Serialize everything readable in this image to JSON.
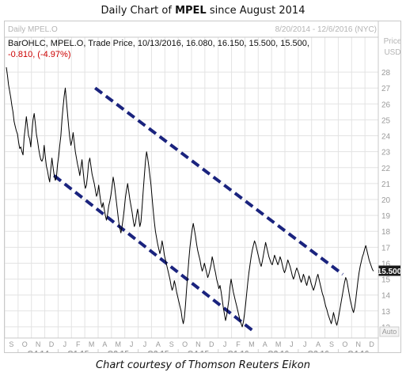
{
  "title": {
    "prefix": "Daily Chart of ",
    "ticker": "MPEL",
    "suffix": " since August 2014"
  },
  "header": {
    "instrument": "Daily MPEL.O",
    "date_range": "8/20/2014 - 12/6/2016 (NYC)",
    "info_line": "BarOHLC, MPEL.O, Trade Price, 10/13/2016, 16.080, 16.150, 15.500, 15.500,",
    "change_line": "-0.810, (-4.97%)",
    "axis_title_1": "Price",
    "axis_title_2": "USD",
    "last_price": "15.500",
    "auto_button": "Auto"
  },
  "caption": "Chart courtesy of Thomson Reuters Eikon",
  "colors": {
    "price": "#000000",
    "channel": "#1a237e",
    "grid": "#e3e3e3",
    "change": "#cc0000",
    "last_badge": "#1a1a1a"
  },
  "chart_data": {
    "type": "line",
    "series": [
      {
        "values": [
          28.3,
          27.8,
          27.2,
          26.8,
          26.4,
          25.9,
          25.5,
          24.9,
          24.6,
          24.3,
          24.1,
          23.6,
          23.2,
          23.3,
          23.0,
          22.8,
          23.9,
          24.5,
          25.2,
          24.6,
          24.0,
          23.8,
          23.3,
          24.2,
          25.0,
          25.4,
          24.8,
          24.1,
          23.7,
          23.2,
          22.8,
          22.5,
          22.4,
          22.6,
          23.4,
          22.7,
          22.1,
          21.8,
          21.4,
          21.1,
          21.9,
          22.6,
          22.0,
          21.5,
          21.2,
          21.4,
          22.2,
          22.7,
          23.4,
          24.0,
          25.0,
          25.8,
          26.5,
          27.0,
          26.2,
          25.4,
          24.6,
          23.9,
          23.4,
          23.7,
          24.2,
          23.6,
          23.0,
          22.6,
          22.2,
          21.9,
          21.5,
          22.0,
          22.5,
          21.8,
          21.1,
          20.7,
          20.9,
          21.5,
          22.3,
          22.6,
          22.1,
          21.6,
          21.3,
          21.0,
          20.6,
          20.2,
          20.4,
          20.9,
          20.3,
          19.8,
          19.5,
          19.8,
          19.4,
          19.0,
          18.7,
          19.1,
          19.6,
          19.9,
          20.3,
          20.8,
          21.4,
          21.0,
          20.4,
          19.8,
          19.2,
          18.6,
          18.2,
          17.9,
          18.3,
          18.8,
          19.4,
          20.1,
          20.6,
          21.0,
          20.5,
          20.0,
          19.6,
          19.2,
          18.7,
          18.3,
          18.5,
          19.0,
          19.4,
          18.9,
          18.3,
          18.6,
          19.5,
          20.5,
          21.5,
          22.4,
          23.0,
          22.6,
          22.1,
          21.5,
          20.9,
          20.1,
          19.3,
          18.6,
          18.0,
          17.6,
          17.2,
          16.9,
          16.6,
          16.9,
          17.4,
          17.0,
          16.5,
          16.2,
          15.9,
          15.6,
          15.3,
          15.0,
          14.6,
          14.3,
          14.5,
          14.9,
          14.6,
          14.2,
          13.9,
          13.6,
          13.3,
          13.0,
          12.5,
          12.2,
          12.6,
          13.4,
          14.4,
          15.3,
          16.2,
          17.0,
          17.6,
          18.1,
          18.5,
          18.1,
          17.7,
          17.2,
          16.8,
          16.5,
          16.2,
          15.8,
          15.5,
          15.7,
          16.0,
          15.7,
          15.4,
          15.1,
          15.3,
          15.6,
          15.9,
          16.4,
          16.1,
          15.7,
          15.4,
          15.0,
          14.7,
          14.4,
          14.6,
          14.2,
          13.7,
          13.2,
          12.8,
          12.4,
          12.7,
          13.2,
          13.7,
          14.5,
          15.0,
          14.6,
          14.2,
          13.9,
          13.6,
          13.3,
          13.0,
          12.7,
          12.4,
          12.2,
          12.0,
          12.3,
          12.8,
          13.4,
          14.1,
          14.8,
          15.4,
          15.9,
          16.4,
          16.8,
          17.1,
          17.4,
          17.2,
          16.9,
          16.6,
          16.3,
          16.0,
          15.8,
          16.1,
          16.5,
          16.9,
          17.3,
          17.0,
          16.7,
          16.4,
          16.2,
          16.0,
          15.9,
          16.2,
          16.5,
          16.3,
          16.1,
          15.9,
          16.1,
          16.4,
          16.2,
          15.9,
          15.6,
          15.4,
          15.6,
          15.9,
          16.2,
          16.0,
          15.8,
          15.5,
          15.2,
          15.0,
          15.2,
          15.5,
          15.7,
          15.5,
          15.3,
          15.0,
          14.8,
          15.0,
          15.3,
          15.1,
          14.8,
          14.6,
          14.9,
          15.2,
          15.0,
          14.7,
          14.5,
          14.3,
          14.5,
          14.8,
          15.1,
          15.3,
          15.0,
          14.7,
          14.4,
          14.1,
          13.9,
          13.6,
          13.3,
          13.1,
          12.8,
          12.6,
          12.4,
          12.2,
          12.5,
          12.9,
          12.6,
          12.3,
          12.1,
          12.4,
          12.8,
          13.2,
          13.6,
          14.0,
          14.4,
          14.8,
          15.1,
          14.9,
          14.5,
          14.1,
          13.7,
          13.4,
          13.1,
          12.9,
          13.2,
          13.7,
          14.3,
          14.9,
          15.4,
          15.8,
          16.1,
          16.4,
          16.6,
          16.9,
          17.1,
          16.8,
          16.5,
          16.2,
          16.0,
          15.8,
          15.6,
          15.5
        ]
      }
    ],
    "channels": [
      {
        "name": "upper",
        "points": [
          {
            "x": 0.242,
            "y": 27.0
          },
          {
            "x": 0.905,
            "y": 15.3
          }
        ]
      },
      {
        "name": "lower",
        "points": [
          {
            "x": 0.132,
            "y": 21.5
          },
          {
            "x": 0.662,
            "y": 11.8
          }
        ]
      }
    ],
    "ylim": [
      11.3,
      28.7
    ],
    "y_ticks": [
      12,
      13,
      14,
      15,
      16,
      17,
      18,
      19,
      20,
      21,
      22,
      23,
      24,
      25,
      26,
      27,
      28
    ],
    "month_ticks": [
      "S",
      "O",
      "N",
      "D",
      "J",
      "F",
      "M",
      "A",
      "M",
      "J",
      "J",
      "A",
      "S",
      "O",
      "N",
      "D",
      "J",
      "F",
      "M",
      "A",
      "M",
      "J",
      "J",
      "A",
      "S",
      "O",
      "N",
      "D"
    ],
    "quarter_ticks": [
      "Q4 14",
      "Q1 15",
      "Q2 15",
      "Q3 15",
      "Q4 15",
      "Q1 16",
      "Q2 16",
      "Q3 16",
      "Q4 16"
    ],
    "grid": true
  }
}
